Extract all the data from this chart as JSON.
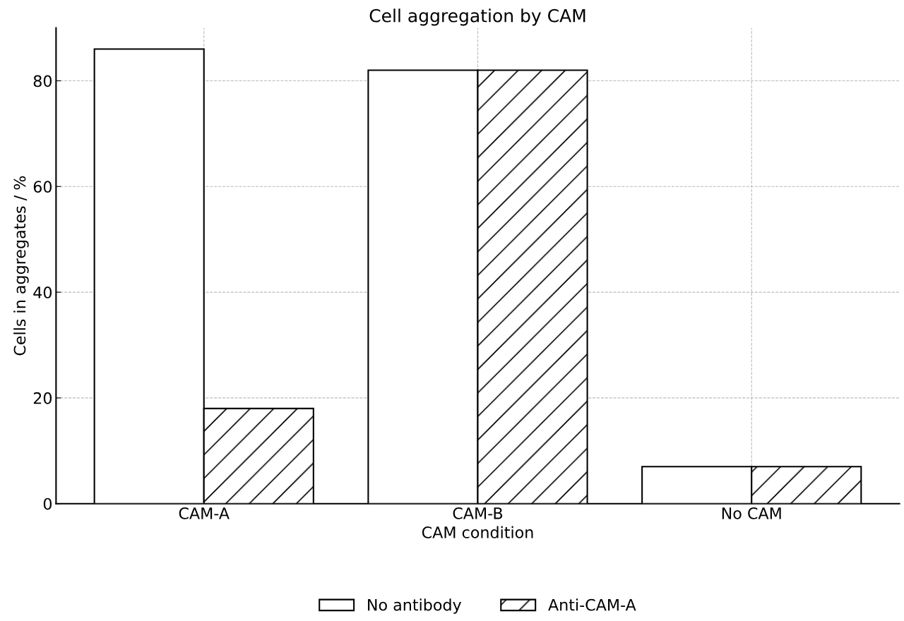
{
  "chart_data": {
    "type": "bar",
    "title": "Cell aggregation by CAM",
    "xlabel": "CAM condition",
    "ylabel": "Cells in aggregates / %",
    "categories": [
      "CAM-A",
      "CAM-B",
      "No CAM"
    ],
    "series": [
      {
        "name": "No antibody",
        "color": "#ffffff",
        "values": [
          86,
          82,
          7
        ]
      },
      {
        "name": "Anti-CAM-A",
        "color": "#ffffff",
        "values": [
          18,
          82,
          7
        ]
      }
    ],
    "ylim": [
      0,
      90
    ],
    "yticks": [
      0,
      20,
      40,
      60,
      80
    ],
    "grid": true,
    "legend": "bottom"
  }
}
